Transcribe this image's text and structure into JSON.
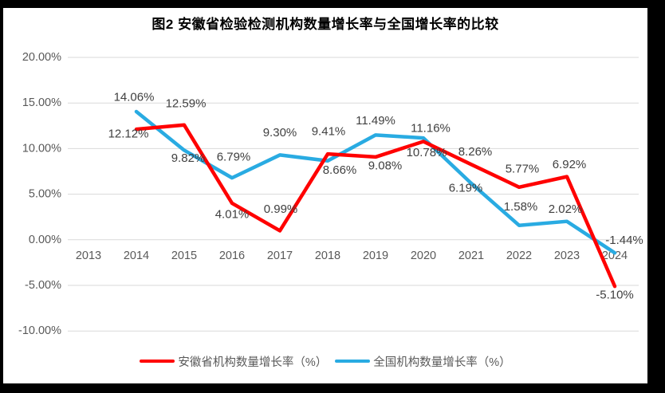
{
  "title": "图2 安徽省检验检测机构数量增长率与全国增长率的比较",
  "colors": {
    "background": "#000000",
    "chart_background": "#FFFFFF",
    "grid": "#D9D9D9",
    "axis_text": "#595959",
    "data_label_text": "#404040",
    "title_text": "#000000",
    "anhui_red": "#FF0000",
    "national_blue": "#29ABE2"
  },
  "chart_data": {
    "type": "line",
    "title": "图2 安徽省检验检测机构数量增长率与全国增长率的比较",
    "categories": [
      "2013",
      "2014",
      "2015",
      "2016",
      "2017",
      "2018",
      "2019",
      "2020",
      "2021",
      "2022",
      "2023",
      "2024"
    ],
    "xlabel": "",
    "ylabel": "",
    "ylim": [
      -10,
      20
    ],
    "grid": true,
    "legend_position": "bottom",
    "yticks": [
      {
        "value": 20,
        "label": "20.00%"
      },
      {
        "value": 15,
        "label": "15.00%"
      },
      {
        "value": 10,
        "label": "10.00%"
      },
      {
        "value": 5,
        "label": "5.00%"
      },
      {
        "value": 0,
        "label": "0.00%"
      },
      {
        "value": -5,
        "label": "-5.00%"
      },
      {
        "value": -10,
        "label": "-10.00%"
      }
    ],
    "series": [
      {
        "name": "安徽省机构数量增长率（%）",
        "color": "#FF0000",
        "values": [
          null,
          12.12,
          12.59,
          4.01,
          0.99,
          9.41,
          9.08,
          10.78,
          8.26,
          5.77,
          6.92,
          -5.1
        ],
        "labels": [
          null,
          "12.12%",
          "12.59%",
          "4.01%",
          "0.99%",
          "9.41%",
          "9.08%",
          "10.78%",
          "8.26%",
          "5.77%",
          "6.92%",
          "-5.10%"
        ],
        "label_offsets": [
          null,
          [
            -10,
            6
          ],
          [
            2,
            -27
          ],
          [
            0,
            14
          ],
          [
            1,
            -27
          ],
          [
            1,
            -28
          ],
          [
            12,
            11
          ],
          [
            4,
            14
          ],
          [
            5,
            -16
          ],
          [
            4,
            -23
          ],
          [
            3,
            -15
          ],
          [
            0,
            11
          ]
        ]
      },
      {
        "name": "全国机构数量增长率（%）",
        "color": "#29ABE2",
        "values": [
          null,
          14.06,
          9.82,
          6.79,
          9.3,
          8.66,
          11.49,
          11.16,
          6.19,
          1.58,
          2.02,
          -1.44
        ],
        "labels": [
          null,
          "14.06%",
          "9.82%",
          "6.79%",
          "9.30%",
          "8.66%",
          "11.49%",
          "11.16%",
          "6.19%",
          "1.58%",
          "2.02%",
          "-1.44%"
        ],
        "label_offsets": [
          null,
          [
            -3,
            -18
          ],
          [
            5,
            10
          ],
          [
            2,
            -26
          ],
          [
            0,
            -28
          ],
          [
            15,
            12
          ],
          [
            0,
            -18
          ],
          [
            9,
            -12
          ],
          [
            -7,
            6
          ],
          [
            2,
            -23
          ],
          [
            -2,
            -15
          ],
          [
            12,
            -16
          ]
        ]
      }
    ]
  },
  "legend": {
    "items": [
      {
        "label": "安徽省机构数量增长率（%）",
        "color": "#FF0000"
      },
      {
        "label": "全国机构数量增长率（%）",
        "color": "#29ABE2"
      }
    ]
  }
}
